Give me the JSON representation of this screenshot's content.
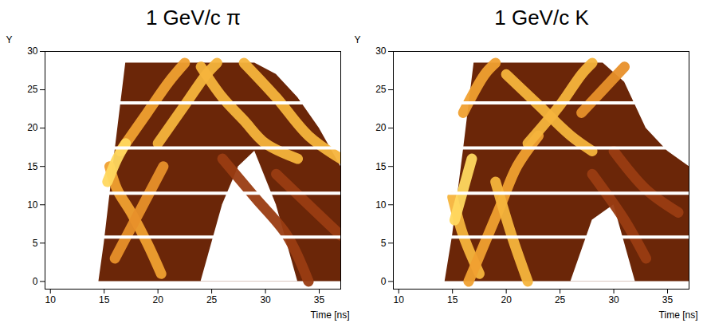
{
  "chart_data": [
    {
      "type": "line",
      "title": "1 GeV/c π",
      "xlabel": "Time [ns]",
      "ylabel": "Y",
      "xlim": [
        9.5,
        37
      ],
      "xticks": [
        10,
        15,
        20,
        25,
        30,
        35
      ],
      "ylim": [
        -1,
        30
      ],
      "yticks": [
        0,
        5,
        10,
        15,
        20,
        25,
        30
      ],
      "grid": false,
      "gaps": [
        5.8,
        11.5,
        17.4,
        23.3
      ],
      "series": [
        {
          "type": "area",
          "color": "#6b2608",
          "x": [
            14.5,
            15,
            16,
            17,
            29,
            31,
            33,
            35,
            37
          ],
          "low": [
            0,
            0,
            0,
            0,
            0,
            0,
            0,
            0,
            0
          ],
          "high": [
            0,
            5,
            17,
            28.5,
            28.5,
            27,
            24,
            20,
            15
          ]
        },
        {
          "type": "area",
          "color": "#ffffff",
          "x": [
            24,
            26,
            27.5,
            29,
            31,
            33
          ],
          "low": [
            0,
            0,
            0,
            0,
            0,
            0
          ],
          "high": [
            0,
            10,
            15,
            17,
            10,
            0
          ]
        },
        {
          "type": "line",
          "color": "#9a3c12",
          "x": [
            26,
            29,
            32,
            34
          ],
          "values": [
            16,
            11,
            6,
            0
          ]
        },
        {
          "type": "line",
          "color": "#9a3c12",
          "x": [
            31,
            34,
            37
          ],
          "values": [
            14,
            10,
            6
          ]
        },
        {
          "type": "line",
          "color": "#f0a030",
          "x": [
            15.5,
            16.2,
            17.5,
            19,
            20.3
          ],
          "values": [
            15,
            12,
            9,
            5,
            1
          ]
        },
        {
          "type": "line",
          "color": "#e8902a",
          "x": [
            16,
            17.5,
            19,
            20.5
          ],
          "values": [
            3,
            7,
            11,
            15
          ]
        },
        {
          "type": "line",
          "color": "#f0a030",
          "x": [
            16.5,
            19,
            21,
            22.5
          ],
          "values": [
            17,
            22,
            26,
            28.5
          ]
        },
        {
          "type": "line",
          "color": "#f5b43c",
          "x": [
            20,
            22.5,
            24.5,
            25.5
          ],
          "values": [
            18,
            23,
            27,
            28.5
          ]
        },
        {
          "type": "line",
          "color": "#f5b43c",
          "x": [
            24,
            26,
            28,
            30,
            33
          ],
          "values": [
            28,
            24,
            21,
            18,
            16
          ]
        },
        {
          "type": "line",
          "color": "#f5b43c",
          "x": [
            28,
            31,
            34,
            37
          ],
          "values": [
            28.5,
            24,
            19,
            16
          ]
        },
        {
          "type": "line",
          "color": "#ffd860",
          "x": [
            15.3,
            16.2,
            17
          ],
          "values": [
            13,
            16,
            18
          ]
        }
      ]
    },
    {
      "type": "line",
      "title": "1 GeV/c K",
      "xlabel": "Time [ns]",
      "ylabel": "Y",
      "xlim": [
        9.5,
        37
      ],
      "xticks": [
        10,
        15,
        20,
        25,
        30,
        35
      ],
      "ylim": [
        -1,
        30
      ],
      "yticks": [
        0,
        5,
        10,
        15,
        20,
        25,
        30
      ],
      "grid": false,
      "gaps": [
        5.8,
        11.5,
        17.4,
        23.3
      ],
      "series": [
        {
          "type": "area",
          "color": "#6b2608",
          "x": [
            14.3,
            15,
            16,
            17,
            29,
            31,
            33,
            35,
            37
          ],
          "low": [
            0,
            0,
            0,
            0,
            0,
            0,
            0,
            0,
            0
          ],
          "high": [
            0,
            6,
            17,
            28.5,
            28.5,
            26,
            20,
            17,
            15
          ]
        },
        {
          "type": "area",
          "color": "#ffffff",
          "x": [
            26,
            28,
            30,
            32
          ],
          "low": [
            0,
            0,
            0,
            0
          ],
          "high": [
            0,
            8,
            10,
            0
          ]
        },
        {
          "type": "line",
          "color": "#9a3c12",
          "x": [
            28,
            31,
            33
          ],
          "values": [
            14,
            8,
            3
          ]
        },
        {
          "type": "line",
          "color": "#9a3c12",
          "x": [
            30,
            33,
            36
          ],
          "values": [
            17,
            12,
            9
          ]
        },
        {
          "type": "line",
          "color": "#f5b43c",
          "x": [
            15,
            16,
            17.5
          ],
          "values": [
            11,
            6,
            1
          ]
        },
        {
          "type": "line",
          "color": "#f0a030",
          "x": [
            16.5,
            18,
            19.5,
            21,
            23
          ],
          "values": [
            0,
            5,
            10,
            15,
            19
          ]
        },
        {
          "type": "line",
          "color": "#f5b43c",
          "x": [
            19,
            20.5,
            22
          ],
          "values": [
            13,
            6,
            0
          ]
        },
        {
          "type": "line",
          "color": "#f0a030",
          "x": [
            16,
            18,
            19
          ],
          "values": [
            22,
            27,
            28.5
          ]
        },
        {
          "type": "line",
          "color": "#f5b43c",
          "x": [
            20,
            23,
            26,
            28
          ],
          "values": [
            27,
            23,
            19,
            17
          ]
        },
        {
          "type": "line",
          "color": "#f5b43c",
          "x": [
            22,
            25,
            27,
            28
          ],
          "values": [
            18,
            23,
            27,
            28.5
          ]
        },
        {
          "type": "line",
          "color": "#e8902a",
          "x": [
            27,
            29,
            31
          ],
          "values": [
            22,
            25,
            28
          ]
        },
        {
          "type": "line",
          "color": "#ffd860",
          "x": [
            15.2,
            16,
            16.8
          ],
          "values": [
            8,
            12,
            16
          ]
        }
      ]
    }
  ]
}
